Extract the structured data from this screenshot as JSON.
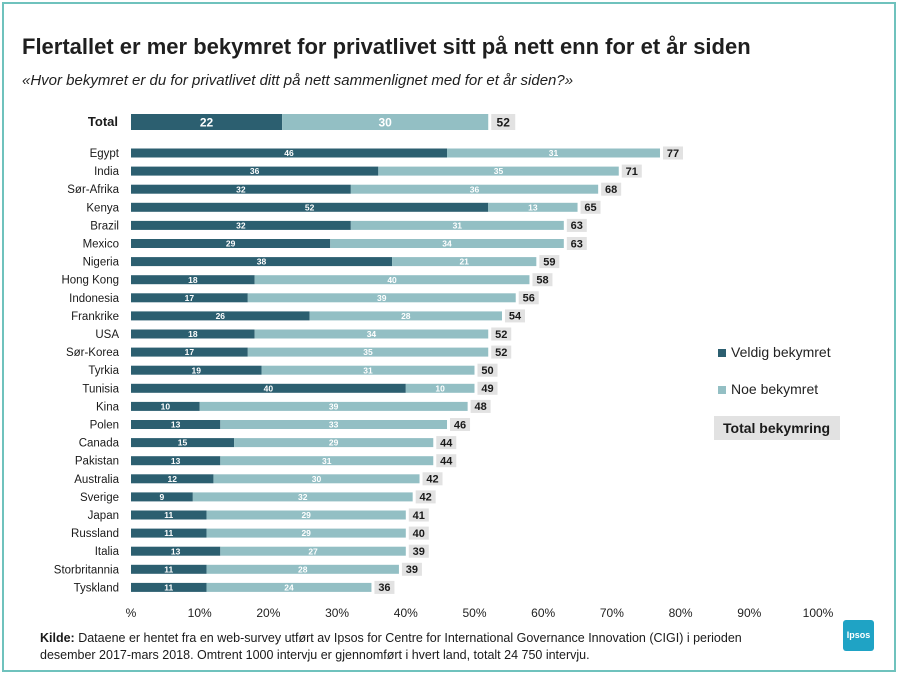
{
  "title": "Flertallet er mer bekymret for privatlivet sitt på nett enn for et år siden",
  "subtitle": "«Hvor bekymret er du for privatlivet ditt på nett sammenlignet med for et år siden?»",
  "colors": {
    "dark": "#2c5f70",
    "light": "#93bfc4",
    "total_bg": "#e2e2e2",
    "frame": "#6fc2bd"
  },
  "chart_data": {
    "type": "bar",
    "orientation": "horizontal-stacked",
    "xlim": [
      0,
      100
    ],
    "x_ticks": [
      "%",
      "10%",
      "20%",
      "30%",
      "40%",
      "50%",
      "60%",
      "70%",
      "80%",
      "90%",
      "100%"
    ],
    "series": [
      {
        "name": "Veldig bekymret",
        "color": "#2c5f70"
      },
      {
        "name": "Noe bekymret",
        "color": "#93bfc4"
      }
    ],
    "total_label": "Total bekymring",
    "total_row": {
      "label": "Total",
      "values": [
        22,
        30
      ],
      "total": 52
    },
    "categories": [
      "Egypt",
      "India",
      "Sør-Afrika",
      "Kenya",
      "Brazil",
      "Mexico",
      "Nigeria",
      "Hong Kong",
      "Indonesia",
      "Frankrike",
      "USA",
      "Sør-Korea",
      "Tyrkia",
      "Tunisia",
      "Kina",
      "Polen",
      "Canada",
      "Pakistan",
      "Australia",
      "Sverige",
      "Japan",
      "Russland",
      "Italia",
      "Storbritannia",
      "Tyskland"
    ],
    "veldig": [
      46,
      36,
      32,
      52,
      32,
      29,
      38,
      18,
      17,
      26,
      18,
      17,
      19,
      40,
      10,
      13,
      15,
      13,
      12,
      9,
      11,
      11,
      13,
      11,
      11
    ],
    "noe": [
      31,
      35,
      36,
      13,
      31,
      34,
      21,
      40,
      39,
      28,
      34,
      35,
      31,
      10,
      39,
      33,
      29,
      31,
      30,
      32,
      29,
      29,
      27,
      28,
      24
    ],
    "total": [
      77,
      71,
      68,
      65,
      63,
      63,
      59,
      58,
      56,
      54,
      52,
      52,
      50,
      49,
      48,
      46,
      44,
      44,
      42,
      42,
      41,
      40,
      39,
      39,
      36
    ]
  },
  "legend": {
    "veldig": "Veldig bekymret",
    "noe": "Noe bekymret",
    "total": "Total bekymring"
  },
  "source": {
    "label": "Kilde:",
    "text": " Dataene er hentet fra en web-survey utført av Ipsos for Centre for International Governance Innovation (CIGI) i perioden desember 2017-mars 2018. Omtrent 1000 intervju er gjennomført i hvert land, totalt 24 750 intervju."
  },
  "logo": "Ipsos"
}
